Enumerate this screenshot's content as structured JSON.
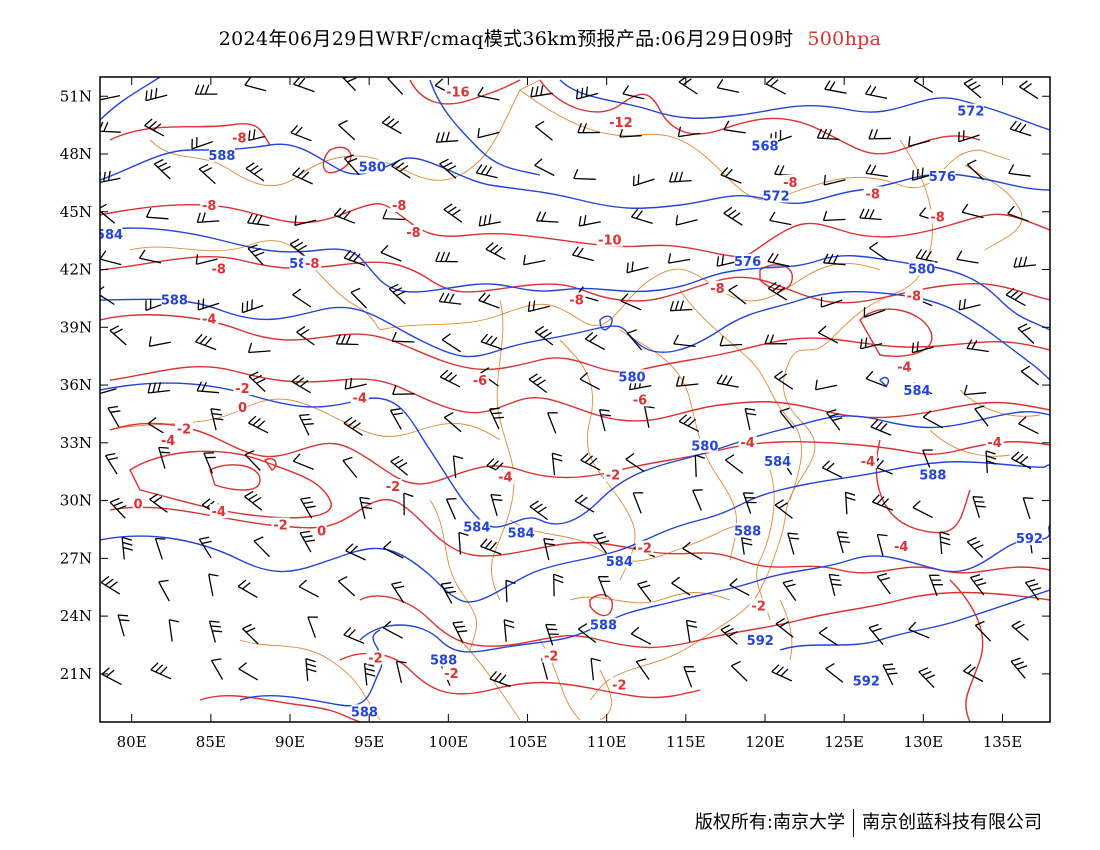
{
  "title": {
    "main": "2024年06月29日WRF/cmaq模式36km预报产品:06月29日09时",
    "level": "500hpa"
  },
  "axes": {
    "lon_ticks": [
      "80E",
      "85E",
      "90E",
      "95E",
      "100E",
      "105E",
      "110E",
      "115E",
      "120E",
      "125E",
      "130E",
      "135E"
    ],
    "lat_ticks": [
      "51N",
      "48N",
      "45N",
      "42N",
      "39N",
      "36N",
      "33N",
      "30N",
      "27N",
      "24N",
      "21N"
    ],
    "lon_range": [
      78,
      138
    ],
    "lat_range": [
      18.5,
      52
    ]
  },
  "colors": {
    "height_contour": "#2244dd",
    "temperature_contour": "#e03030",
    "boundary": "#e08a3a",
    "wind_barb": "#000000"
  },
  "height_labels": [
    {
      "text": "588",
      "lon": 85.7,
      "lat": 47.9
    },
    {
      "text": "580",
      "lon": 95.2,
      "lat": 47.3
    },
    {
      "text": "588",
      "lon": 82.7,
      "lat": 40.4
    },
    {
      "text": "584",
      "lon": 78.6,
      "lat": 43.8
    },
    {
      "text": "584",
      "lon": 90.8,
      "lat": 42.3
    },
    {
      "text": "568",
      "lon": 120.0,
      "lat": 48.4
    },
    {
      "text": "572",
      "lon": 133.0,
      "lat": 50.2
    },
    {
      "text": "572",
      "lon": 120.7,
      "lat": 45.8
    },
    {
      "text": "576",
      "lon": 131.2,
      "lat": 46.8
    },
    {
      "text": "576",
      "lon": 118.9,
      "lat": 42.4
    },
    {
      "text": "580",
      "lon": 129.9,
      "lat": 42.0
    },
    {
      "text": "580",
      "lon": 111.6,
      "lat": 36.4
    },
    {
      "text": "584",
      "lon": 129.6,
      "lat": 35.7
    },
    {
      "text": "580",
      "lon": 116.2,
      "lat": 32.8
    },
    {
      "text": "584",
      "lon": 120.8,
      "lat": 32.0
    },
    {
      "text": "588",
      "lon": 130.6,
      "lat": 31.3
    },
    {
      "text": "584",
      "lon": 101.8,
      "lat": 28.6
    },
    {
      "text": "584",
      "lon": 104.6,
      "lat": 28.3
    },
    {
      "text": "588",
      "lon": 118.9,
      "lat": 28.4
    },
    {
      "text": "584",
      "lon": 110.8,
      "lat": 26.8
    },
    {
      "text": "592",
      "lon": 136.7,
      "lat": 28.0
    },
    {
      "text": "588",
      "lon": 109.8,
      "lat": 23.5
    },
    {
      "text": "592",
      "lon": 119.7,
      "lat": 22.7
    },
    {
      "text": "588",
      "lon": 99.7,
      "lat": 21.7
    },
    {
      "text": "592",
      "lon": 126.4,
      "lat": 20.6
    },
    {
      "text": "588",
      "lon": 94.7,
      "lat": 19.0
    }
  ],
  "temperature_labels": [
    {
      "text": "-16",
      "lon": 100.6,
      "lat": 51.2
    },
    {
      "text": "-12",
      "lon": 110.9,
      "lat": 49.6
    },
    {
      "text": "-8",
      "lon": 86.8,
      "lat": 48.8
    },
    {
      "text": "-8",
      "lon": 84.9,
      "lat": 45.3
    },
    {
      "text": "-8",
      "lon": 96.9,
      "lat": 45.3
    },
    {
      "text": "-8",
      "lon": 97.8,
      "lat": 43.9
    },
    {
      "text": "-10",
      "lon": 110.2,
      "lat": 43.5
    },
    {
      "text": "-8",
      "lon": 121.6,
      "lat": 46.5
    },
    {
      "text": "-8",
      "lon": 126.8,
      "lat": 45.9
    },
    {
      "text": "-8",
      "lon": 130.9,
      "lat": 44.7
    },
    {
      "text": "-8",
      "lon": 85.5,
      "lat": 42.0
    },
    {
      "text": "-8",
      "lon": 91.4,
      "lat": 42.3
    },
    {
      "text": "-8",
      "lon": 108.1,
      "lat": 40.4
    },
    {
      "text": "-8",
      "lon": 117.0,
      "lat": 41.0
    },
    {
      "text": "-8",
      "lon": 129.4,
      "lat": 40.6
    },
    {
      "text": "-4",
      "lon": 84.9,
      "lat": 39.4
    },
    {
      "text": "-6",
      "lon": 102.0,
      "lat": 36.2
    },
    {
      "text": "-6",
      "lon": 112.1,
      "lat": 35.2
    },
    {
      "text": "-4",
      "lon": 128.8,
      "lat": 36.9
    },
    {
      "text": "-2",
      "lon": 87.0,
      "lat": 35.8
    },
    {
      "text": "0",
      "lon": 87.0,
      "lat": 34.8
    },
    {
      "text": "-4",
      "lon": 94.4,
      "lat": 35.3
    },
    {
      "text": "-2",
      "lon": 83.3,
      "lat": 33.7
    },
    {
      "text": "-4",
      "lon": 82.3,
      "lat": 33.1
    },
    {
      "text": "-4",
      "lon": 118.9,
      "lat": 33.0
    },
    {
      "text": "-4",
      "lon": 134.5,
      "lat": 33.0
    },
    {
      "text": "-4",
      "lon": 126.5,
      "lat": 32.0
    },
    {
      "text": "-2",
      "lon": 96.5,
      "lat": 30.7
    },
    {
      "text": "-4",
      "lon": 103.6,
      "lat": 31.2
    },
    {
      "text": "-2",
      "lon": 110.4,
      "lat": 31.3
    },
    {
      "text": "0",
      "lon": 80.4,
      "lat": 29.8
    },
    {
      "text": "-4",
      "lon": 85.5,
      "lat": 29.4
    },
    {
      "text": "-2",
      "lon": 89.4,
      "lat": 28.7
    },
    {
      "text": "0",
      "lon": 92.0,
      "lat": 28.4
    },
    {
      "text": "-2",
      "lon": 112.4,
      "lat": 27.5
    },
    {
      "text": "-4",
      "lon": 128.6,
      "lat": 27.6
    },
    {
      "text": "-2",
      "lon": 119.6,
      "lat": 24.5
    },
    {
      "text": "-2",
      "lon": 95.4,
      "lat": 21.8
    },
    {
      "text": "-2",
      "lon": 100.2,
      "lat": 21.0
    },
    {
      "text": "-2",
      "lon": 106.5,
      "lat": 21.9
    },
    {
      "text": "-2",
      "lon": 110.8,
      "lat": 20.4
    }
  ],
  "footer": {
    "left": "版权所有:南京大学",
    "right": "南京创蓝科技有限公司"
  }
}
